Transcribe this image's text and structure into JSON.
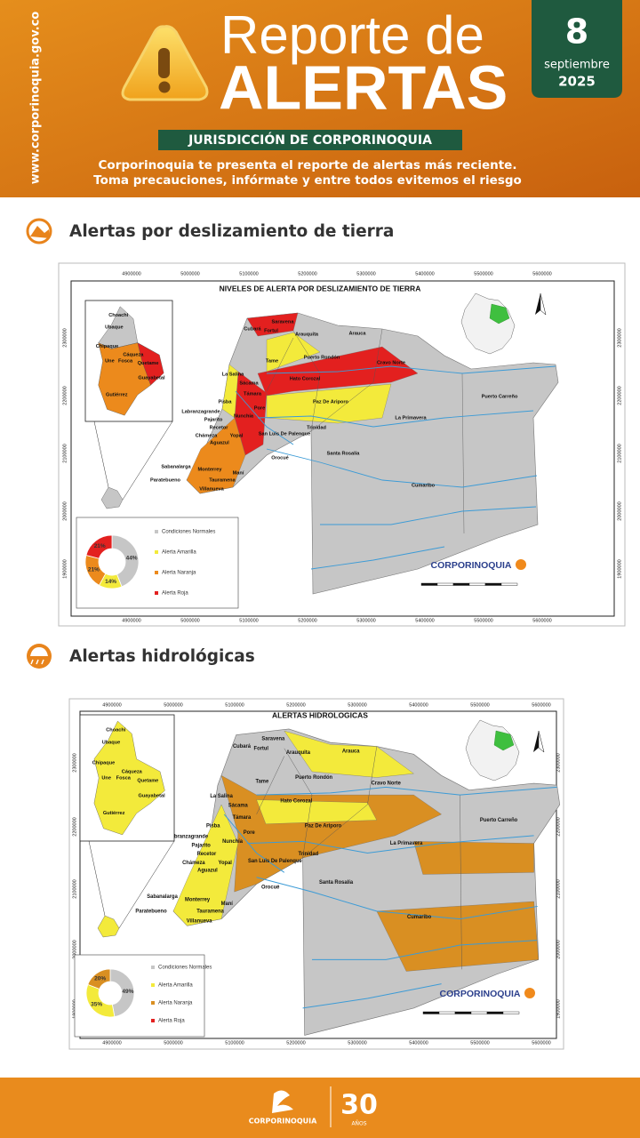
{
  "header": {
    "website": "www.corporinoquia.gov.co",
    "title_line1": "Reporte de",
    "title_line2": "ALERTAS",
    "ribbon": "JURISDICCIÓN DE CORPORINOQUIA",
    "subtitle": [
      "Corporinoquia te presenta el reporte de alertas más reciente.",
      "Toma precauciones, infórmate y entre todos evitemos el riesgo"
    ],
    "date": {
      "day": "8",
      "month": "septiembre",
      "year": "2025"
    }
  },
  "sections": [
    {
      "heading": "Alertas por deslizamiento de tierra",
      "map": {
        "title": "NIVELES DE ALERTA POR DESLIZAMIENTO DE TIERRA",
        "xticks": [
          4900000,
          5000000,
          5100000,
          5200000,
          5300000,
          5400000,
          5500000,
          5600000
        ],
        "yticks": [
          2300000,
          2200000,
          2100000,
          2000000,
          1900000
        ],
        "places": [
          "Saravena",
          "Arauquita",
          "Arauca",
          "Cubará",
          "Fortul",
          "Tame",
          "Puerto Rondón",
          "Cravo Norte",
          "Hato Corozal",
          "Paz De Ariporo",
          "La Salina",
          "Sácama",
          "Támara",
          "Pore",
          "Nunchía",
          "Yopal",
          "Aguazul",
          "Trinidad",
          "San Luis De Palenque",
          "Orocué",
          "Maní",
          "Tauramena",
          "Monterrey",
          "Villanueva",
          "Sabanalarga",
          "Paratebueno",
          "Chámeza",
          "Recetor",
          "Pajarito",
          "Labranzagrande",
          "Pisba",
          "Santa Rosalía",
          "La Primavera",
          "Puerto Carreño",
          "Cumaribo"
        ],
        "inset_places": [
          "Choachi",
          "Ubaque",
          "Chipaque",
          "Cáqueza",
          "Une",
          "Fosca",
          "Quetame",
          "Guayabetal",
          "Gutiérrez"
        ],
        "logo": "CORPORINOQUIA",
        "chart": {
          "type": "pie",
          "categories": [
            "Condiciones Normales",
            "Alerta Amarilla",
            "Alerta Naranja",
            "Alerta Roja"
          ],
          "colors": [
            "#c6c6c6",
            "#f3ea3b",
            "#ec8a1c",
            "#e3201f"
          ],
          "values": [
            44,
            14,
            21,
            21
          ],
          "value_labels": [
            "44%",
            "14%",
            "21%",
            "21%"
          ]
        }
      }
    },
    {
      "heading": "Alertas hidrológicas",
      "map": {
        "title": "ALERTAS HIDROLOGICAS",
        "xticks": [
          4900000,
          5000000,
          5100000,
          5200000,
          5300000,
          5400000,
          5500000,
          5600000
        ],
        "yticks": [
          2300000,
          2200000,
          2100000,
          2000000,
          1900000
        ],
        "places": [
          "Saravena",
          "Arauquita",
          "Arauca",
          "Cubará",
          "Fortul",
          "Tame",
          "Puerto Rondón",
          "Cravo Norte",
          "Hato Corozal",
          "Paz De Ariporo",
          "La Salina",
          "Sácama",
          "Támara",
          "Pore",
          "Nunchía",
          "Yopal",
          "Aguazul",
          "Trinidad",
          "San Luis De Palenque",
          "Orocué",
          "Maní",
          "Tauramena",
          "Monterrey",
          "Villanueva",
          "Sabanalarga",
          "Paratebueno",
          "Chámeza",
          "Recetor",
          "Pajarito",
          "Labranzagrande",
          "Pisba",
          "Santa Rosalía",
          "La Primavera",
          "Puerto Carreño",
          "Cumaribo"
        ],
        "inset_places": [
          "Choachi",
          "Ubaque",
          "Chipaque",
          "Cáqueza",
          "Une",
          "Fosca",
          "Quetame",
          "Guayabetal",
          "Gutiérrez"
        ],
        "logo": "CORPORINOQUIA",
        "chart": {
          "type": "pie",
          "categories": [
            "Condiciones Normales",
            "Alerta Amarilla",
            "Alerta Naranja",
            "Alerta Roja"
          ],
          "colors": [
            "#c6c6c6",
            "#f3ea3b",
            "#d98f22",
            "#e3201f"
          ],
          "values": [
            49,
            35,
            20,
            null
          ],
          "value_labels": [
            "49%",
            "35%",
            "20%",
            null
          ]
        }
      }
    }
  ],
  "footer": {
    "logo": "CORPORINOQUIA",
    "anniversary": "30",
    "anniversary_label": "AÑOS"
  }
}
